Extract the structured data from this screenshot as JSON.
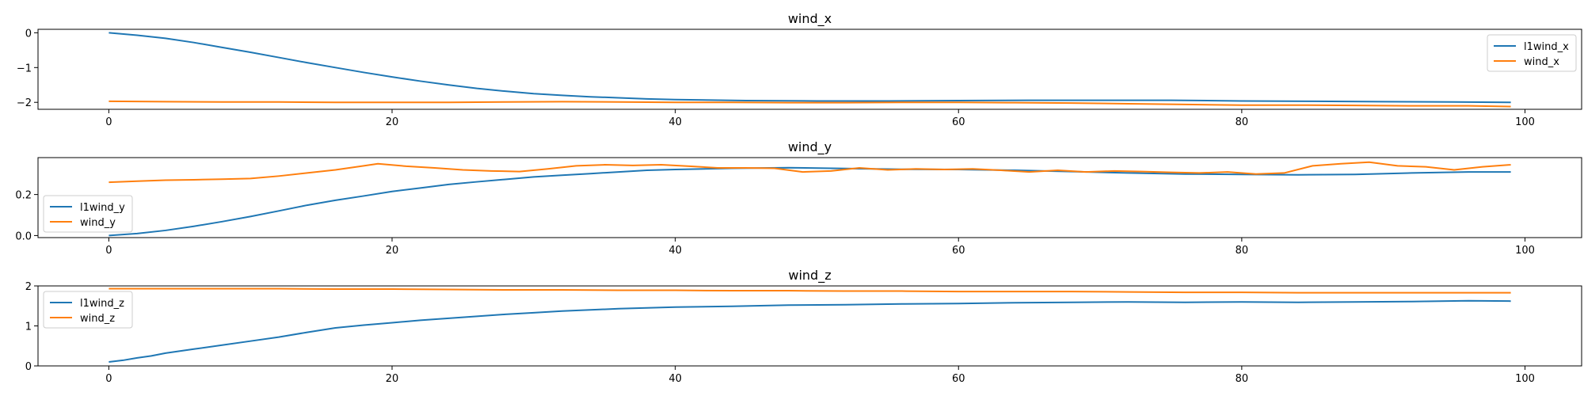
{
  "chart_data": [
    {
      "type": "line",
      "title": "wind_x",
      "xlim": [
        -5,
        104
      ],
      "ylim": [
        -2.2,
        0.1
      ],
      "xticks": [
        0,
        20,
        40,
        60,
        80,
        100
      ],
      "xtick_labels": [
        "0",
        "20",
        "40",
        "60",
        "80",
        "100"
      ],
      "yticks": [
        0,
        -1,
        -2
      ],
      "ytick_labels": [
        "0",
        "−1",
        "−2"
      ],
      "legend_position": "upper right",
      "grid": false,
      "series": [
        {
          "name": "l1wind_x",
          "color": "#1f77b4",
          "x": [
            0,
            2,
            4,
            6,
            8,
            10,
            12,
            14,
            16,
            18,
            20,
            22,
            24,
            26,
            28,
            30,
            32,
            34,
            36,
            38,
            40,
            45,
            50,
            55,
            60,
            65,
            70,
            75,
            80,
            85,
            90,
            95,
            99
          ],
          "y": [
            0,
            -0.07,
            -0.16,
            -0.28,
            -0.42,
            -0.56,
            -0.71,
            -0.86,
            -1.0,
            -1.14,
            -1.27,
            -1.39,
            -1.5,
            -1.6,
            -1.68,
            -1.75,
            -1.8,
            -1.84,
            -1.87,
            -1.9,
            -1.92,
            -1.95,
            -1.96,
            -1.96,
            -1.95,
            -1.94,
            -1.94,
            -1.94,
            -1.96,
            -1.97,
            -1.98,
            -1.99,
            -2.0
          ]
        },
        {
          "name": "wind_x",
          "color": "#ff7f0e",
          "x": [
            0,
            4,
            8,
            12,
            16,
            20,
            24,
            28,
            32,
            36,
            40,
            44,
            48,
            52,
            56,
            60,
            64,
            68,
            72,
            76,
            80,
            84,
            88,
            92,
            96,
            99
          ],
          "y": [
            -1.97,
            -1.98,
            -1.99,
            -1.99,
            -2.0,
            -2.0,
            -2.0,
            -1.99,
            -1.98,
            -1.99,
            -2.0,
            -2.0,
            -2.01,
            -2.01,
            -2.0,
            -2.0,
            -2.01,
            -2.02,
            -2.04,
            -2.06,
            -2.08,
            -2.08,
            -2.09,
            -2.1,
            -2.1,
            -2.12
          ]
        }
      ]
    },
    {
      "type": "line",
      "title": "wind_y",
      "xlim": [
        -5,
        104
      ],
      "ylim": [
        -0.01,
        0.38
      ],
      "xticks": [
        0,
        20,
        40,
        60,
        80,
        100
      ],
      "xtick_labels": [
        "0",
        "20",
        "40",
        "60",
        "80",
        "100"
      ],
      "yticks": [
        0.0,
        0.2
      ],
      "ytick_labels": [
        "0.0",
        "0.2"
      ],
      "legend_position": "lower left",
      "grid": false,
      "series": [
        {
          "name": "l1wind_y",
          "color": "#1f77b4",
          "x": [
            0,
            2,
            4,
            6,
            8,
            10,
            12,
            14,
            16,
            18,
            20,
            22,
            24,
            26,
            28,
            30,
            32,
            34,
            36,
            38,
            40,
            44,
            48,
            52,
            56,
            60,
            64,
            68,
            72,
            76,
            80,
            84,
            88,
            92,
            96,
            99
          ],
          "y": [
            0.0,
            0.01,
            0.025,
            0.045,
            0.068,
            0.093,
            0.12,
            0.148,
            0.172,
            0.193,
            0.215,
            0.232,
            0.249,
            0.262,
            0.274,
            0.286,
            0.294,
            0.302,
            0.31,
            0.318,
            0.322,
            0.328,
            0.331,
            0.327,
            0.323,
            0.322,
            0.318,
            0.312,
            0.305,
            0.3,
            0.298,
            0.296,
            0.298,
            0.305,
            0.31,
            0.31
          ]
        },
        {
          "name": "wind_y",
          "color": "#ff7f0e",
          "x": [
            0,
            2,
            4,
            6,
            8,
            10,
            12,
            14,
            16,
            18,
            19,
            21,
            23,
            25,
            27,
            29,
            31,
            33,
            35,
            37,
            39,
            41,
            43,
            45,
            47,
            49,
            51,
            53,
            55,
            57,
            59,
            61,
            63,
            65,
            67,
            69,
            71,
            73,
            75,
            77,
            79,
            81,
            83,
            85,
            87,
            89,
            91,
            93,
            95,
            97,
            99
          ],
          "y": [
            0.26,
            0.265,
            0.27,
            0.272,
            0.275,
            0.278,
            0.29,
            0.305,
            0.32,
            0.34,
            0.35,
            0.338,
            0.33,
            0.32,
            0.315,
            0.312,
            0.325,
            0.34,
            0.345,
            0.342,
            0.345,
            0.338,
            0.33,
            0.33,
            0.328,
            0.31,
            0.315,
            0.33,
            0.32,
            0.325,
            0.322,
            0.325,
            0.318,
            0.31,
            0.318,
            0.31,
            0.315,
            0.312,
            0.308,
            0.305,
            0.31,
            0.3,
            0.305,
            0.34,
            0.35,
            0.358,
            0.34,
            0.335,
            0.32,
            0.335,
            0.345
          ]
        }
      ]
    },
    {
      "type": "line",
      "title": "wind_z",
      "xlim": [
        -5,
        104
      ],
      "ylim": [
        0,
        2.0
      ],
      "xticks": [
        0,
        20,
        40,
        60,
        80,
        100
      ],
      "xtick_labels": [
        "0",
        "20",
        "40",
        "60",
        "80",
        "100"
      ],
      "yticks": [
        0,
        1,
        2
      ],
      "ytick_labels": [
        "0",
        "1",
        "2"
      ],
      "legend_position": "upper left",
      "grid": false,
      "series": [
        {
          "name": "l1wind_z",
          "color": "#1f77b4",
          "x": [
            0,
            1,
            2,
            3,
            4,
            6,
            8,
            10,
            12,
            14,
            16,
            18,
            20,
            22,
            24,
            26,
            28,
            30,
            32,
            34,
            36,
            38,
            40,
            44,
            48,
            52,
            56,
            60,
            64,
            68,
            72,
            76,
            80,
            84,
            88,
            92,
            96,
            99
          ],
          "y": [
            0.1,
            0.14,
            0.2,
            0.25,
            0.32,
            0.42,
            0.52,
            0.62,
            0.72,
            0.84,
            0.95,
            1.02,
            1.08,
            1.14,
            1.19,
            1.24,
            1.29,
            1.33,
            1.37,
            1.4,
            1.43,
            1.45,
            1.47,
            1.49,
            1.52,
            1.53,
            1.55,
            1.56,
            1.58,
            1.59,
            1.6,
            1.59,
            1.6,
            1.59,
            1.6,
            1.61,
            1.63,
            1.62
          ]
        },
        {
          "name": "wind_z",
          "color": "#ff7f0e",
          "x": [
            0,
            4,
            8,
            12,
            16,
            20,
            24,
            28,
            32,
            36,
            40,
            44,
            48,
            52,
            56,
            60,
            64,
            68,
            72,
            76,
            80,
            84,
            88,
            92,
            96,
            99
          ],
          "y": [
            1.93,
            1.93,
            1.93,
            1.93,
            1.92,
            1.92,
            1.91,
            1.9,
            1.9,
            1.89,
            1.89,
            1.88,
            1.88,
            1.87,
            1.87,
            1.86,
            1.86,
            1.86,
            1.85,
            1.84,
            1.84,
            1.83,
            1.83,
            1.83,
            1.83,
            1.83
          ]
        }
      ]
    }
  ]
}
